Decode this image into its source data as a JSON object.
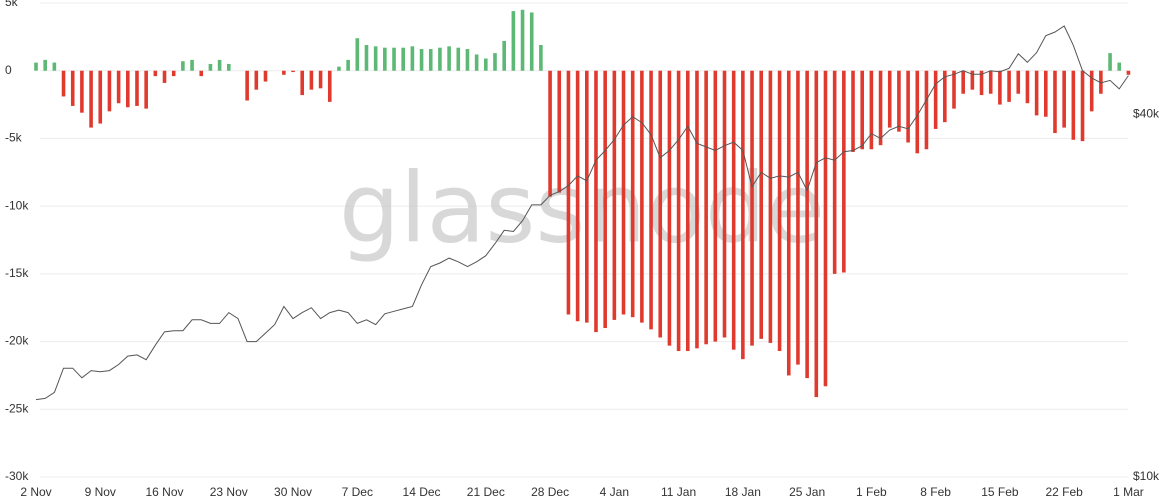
{
  "chart_data": {
    "type": "combo",
    "watermark": "glassnode",
    "categories": [
      "2 Nov",
      null,
      null,
      null,
      null,
      null,
      null,
      "9 Nov",
      null,
      null,
      null,
      null,
      null,
      null,
      "16 Nov",
      null,
      null,
      null,
      null,
      null,
      null,
      "23 Nov",
      null,
      null,
      null,
      null,
      null,
      null,
      "30 Nov",
      null,
      null,
      null,
      null,
      null,
      null,
      "7 Dec",
      null,
      null,
      null,
      null,
      null,
      null,
      "14 Dec",
      null,
      null,
      null,
      null,
      null,
      null,
      "21 Dec",
      null,
      null,
      null,
      null,
      null,
      null,
      "28 Dec",
      null,
      null,
      null,
      null,
      null,
      null,
      "4 Jan",
      null,
      null,
      null,
      null,
      null,
      null,
      "11 Jan",
      null,
      null,
      null,
      null,
      null,
      null,
      "18 Jan",
      null,
      null,
      null,
      null,
      null,
      null,
      "25 Jan",
      null,
      null,
      null,
      null,
      null,
      null,
      "1 Feb",
      null,
      null,
      null,
      null,
      null,
      null,
      "8 Feb",
      null,
      null,
      null,
      null,
      null,
      null,
      "15 Feb",
      null,
      null,
      null,
      null,
      null,
      null,
      "22 Feb",
      null,
      null,
      null,
      null,
      null,
      null,
      "1 Mar"
    ],
    "ylim": [
      -30000,
      5000
    ],
    "yticks": [
      {
        "value": 5000,
        "label": "5k"
      },
      0,
      {
        "value": -5000,
        "label": "-5k"
      },
      {
        "value": -10000,
        "label": "-10k"
      },
      {
        "value": -15000,
        "label": "-15k"
      },
      {
        "value": -20000,
        "label": "-20k"
      },
      {
        "value": -25000,
        "label": "-25k"
      },
      {
        "value": -30000,
        "label": "-30k"
      }
    ],
    "y2lim": [
      10000,
      49200
    ],
    "y2ticks": [
      {
        "value": 40000,
        "label": "$40k"
      },
      {
        "value": 10000,
        "label": "$10k"
      }
    ],
    "grid": true,
    "series": [
      {
        "type": "bar",
        "positive_color": "#5cb874",
        "negative_color": "#e03a2f",
        "values": [
          600,
          800,
          600,
          -1900,
          -2600,
          -3100,
          -4200,
          -3900,
          -3000,
          -2400,
          -2700,
          -2600,
          -2800,
          -400,
          -900,
          -400,
          700,
          800,
          -400,
          500,
          800,
          500,
          0,
          -2200,
          -1400,
          -800,
          0,
          -300,
          -100,
          -1800,
          -1400,
          -1300,
          -2300,
          300,
          800,
          2400,
          1900,
          1800,
          1700,
          1700,
          1700,
          1800,
          1600,
          1600,
          1700,
          1800,
          1700,
          1600,
          1200,
          900,
          1300,
          2200,
          4400,
          4500,
          4300,
          1900,
          -9300,
          -9000,
          -18000,
          -18500,
          -18600,
          -19300,
          -19000,
          -18400,
          -18000,
          -18200,
          -18600,
          -19100,
          -19700,
          -20300,
          -20700,
          -20700,
          -20500,
          -20200,
          -20000,
          -19700,
          -20600,
          -21300,
          -20300,
          -19800,
          -20100,
          -20700,
          -22500,
          -21700,
          -22700,
          -24100,
          -23300,
          -15000,
          -14900,
          -6000,
          -5800,
          -5800,
          -5500,
          -4200,
          -4500,
          -5300,
          -6100,
          -5800,
          -4300,
          -3800,
          -2800,
          -1700,
          -1400,
          -1800,
          -1700,
          -2500,
          -2300,
          -1700,
          -2400,
          -3300,
          -3400,
          -4600,
          -4200,
          -5100,
          -5200,
          -3000,
          -1700,
          1300,
          600,
          -300
        ]
      },
      {
        "type": "line",
        "axis": "y2",
        "color": "#555555",
        "values": [
          16400,
          16500,
          17000,
          19000,
          19000,
          18200,
          18800,
          18700,
          18800,
          19300,
          20000,
          20100,
          19700,
          20900,
          22000,
          22100,
          22100,
          23000,
          23000,
          22700,
          22700,
          23600,
          23100,
          21200,
          21200,
          21900,
          22600,
          24100,
          23100,
          23600,
          24000,
          23100,
          23600,
          23800,
          23600,
          22700,
          23000,
          22600,
          23500,
          23700,
          23900,
          24100,
          25900,
          27400,
          27700,
          28100,
          27800,
          27400,
          27800,
          28300,
          29300,
          30400,
          30300,
          31200,
          32500,
          32500,
          33300,
          33600,
          34100,
          34900,
          34500,
          36200,
          37000,
          37900,
          39100,
          39800,
          39300,
          38300,
          36400,
          37000,
          37900,
          39000,
          37600,
          37300,
          37000,
          37400,
          37700,
          37000,
          34000,
          35200,
          34700,
          34900,
          34800,
          35200,
          33700,
          36000,
          36400,
          36200,
          36900,
          37000,
          37400,
          38400,
          38000,
          38700,
          39000,
          38800,
          39900,
          41200,
          42500,
          43100,
          43300,
          43600,
          43300,
          43300,
          43600,
          43500,
          43800,
          45000,
          44300,
          45100,
          46500,
          46800,
          47300,
          45700,
          43600,
          43000,
          42600,
          42800,
          42100,
          43200
        ]
      }
    ]
  }
}
